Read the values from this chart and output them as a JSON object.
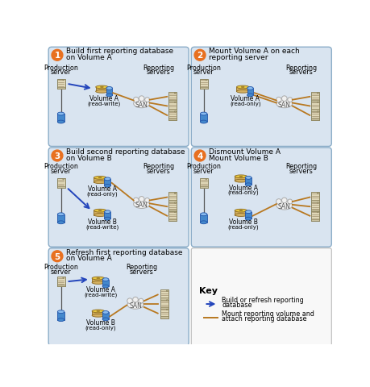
{
  "bg_outer": "#ffffff",
  "bg_panel": "#d9e4f0",
  "bg_panel_border": "#8badc8",
  "circle_bg": "#e87020",
  "arrow_blue": "#2244bb",
  "arrow_orange": "#b87820",
  "key_bg": "#f8f8f8",
  "key_border": "#bbbbbb",
  "panels": [
    {
      "num": "1",
      "title1": "Build first reporting database",
      "title2": "on Volume A"
    },
    {
      "num": "2",
      "title1": "Mount Volume A on each",
      "title2": "reporting server"
    },
    {
      "num": "3",
      "title1": "Build second reporting database",
      "title2": "on Volume B"
    },
    {
      "num": "4",
      "title1": "Dismount Volume A",
      "title2": "Mount Volume B"
    },
    {
      "num": "5",
      "title1": "Refresh first reporting database",
      "title2": "on Volume A"
    }
  ],
  "key_blue_label1": "Build or refresh reporting",
  "key_blue_label2": "database",
  "key_orange_label1": "Mount reporting volume and",
  "key_orange_label2": "attach reporting database"
}
